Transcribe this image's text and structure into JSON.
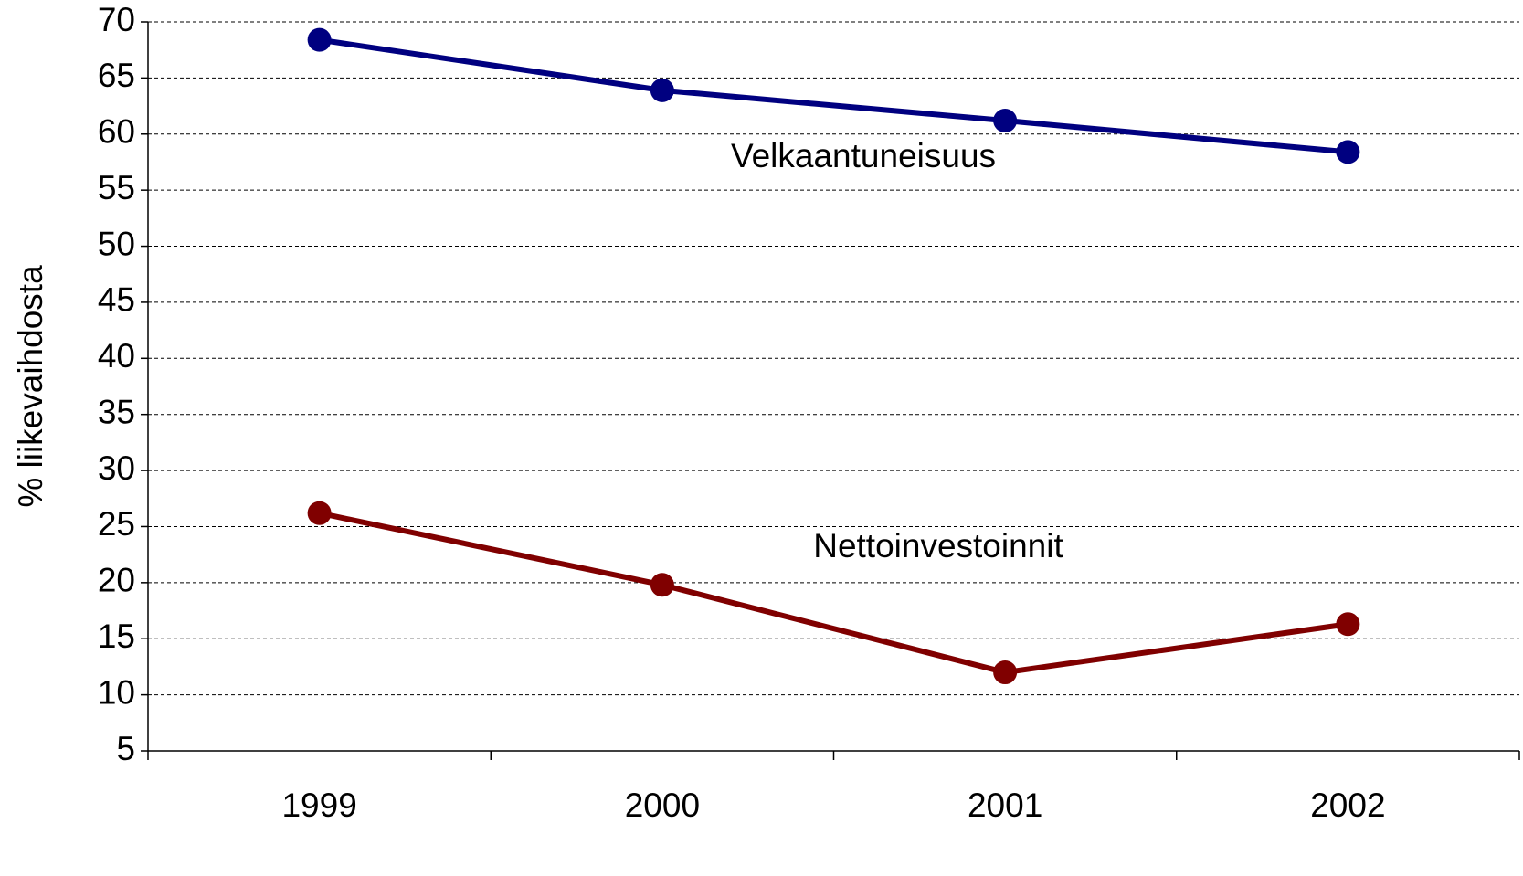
{
  "chart_data": {
    "type": "line",
    "y_label": "% liikevaihdosta",
    "categories": [
      "1999",
      "2000",
      "2001",
      "2002"
    ],
    "series": [
      {
        "name": "Velkaantuneisuus",
        "color": "#000080",
        "values": [
          68.4,
          63.9,
          61.2,
          58.4
        ]
      },
      {
        "name": "Nettoinvestoinnit",
        "color": "#800000",
        "values": [
          26.2,
          19.8,
          12.0,
          16.3
        ]
      }
    ],
    "ylim": [
      5,
      70
    ],
    "yticks": [
      5,
      10,
      15,
      20,
      25,
      30,
      35,
      40,
      45,
      50,
      55,
      60,
      65,
      70
    ],
    "grid": true
  }
}
